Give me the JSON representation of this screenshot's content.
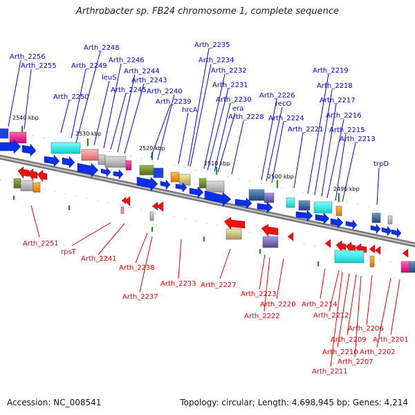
{
  "title": "Arthrobacter sp. FB24 chromosome 1, complete sequence",
  "footer": {
    "accession": "Accession: NC_008541",
    "summary": "Topology: circular; Length: 4,698,945 bp; Genes: 4,214"
  },
  "colors": {
    "forward_label": "#0000cc",
    "reverse_label": "#dd0000",
    "forward_arrow": "#0a2fe8",
    "reverse_arrow": "#ee1111",
    "backbone": "#8a8a8a",
    "tick": "#1a8a1a"
  },
  "scale_labels": [
    "2540 kbp",
    "2530 kbp",
    "2520 kbp",
    "2510 kbp",
    "2500 kbp",
    "2490 kbp"
  ],
  "forward_genes": [
    "Arth_2256",
    "Arth_2255",
    "Arth_2248",
    "Arth_2249",
    "Arth_2246",
    "leuS",
    "Arth_2244",
    "Arth_2243",
    "Arth_2245",
    "Arth_2250",
    "Arth_2240",
    "Arth_2239",
    "hrcA",
    "Arth_2235",
    "Arth_2234",
    "Arth_2232",
    "Arth_2231",
    "Arth_2230",
    "era",
    "Arth_2228",
    "Arth_2226",
    "recO",
    "Arth_2224",
    "Arth_2221",
    "Arth_2219",
    "Arth_2218",
    "Arth_2217",
    "Arth_2216",
    "Arth_2215",
    "Arth_2213",
    "trpD"
  ],
  "reverse_genes": [
    "Arth_2251",
    "rpsT",
    "Arth_2241",
    "Arth_2238",
    "Arth_2237",
    "Arth_2233",
    "Arth_2227",
    "Arth_2223",
    "Arth_2220",
    "Arth_2222",
    "Arth_2214",
    "Arth_2212",
    "Arth_2206",
    "Arth_2209",
    "Arth_2210",
    "Arth_2207",
    "Arth_2211",
    "Arth_2201",
    "Arth_2202"
  ]
}
